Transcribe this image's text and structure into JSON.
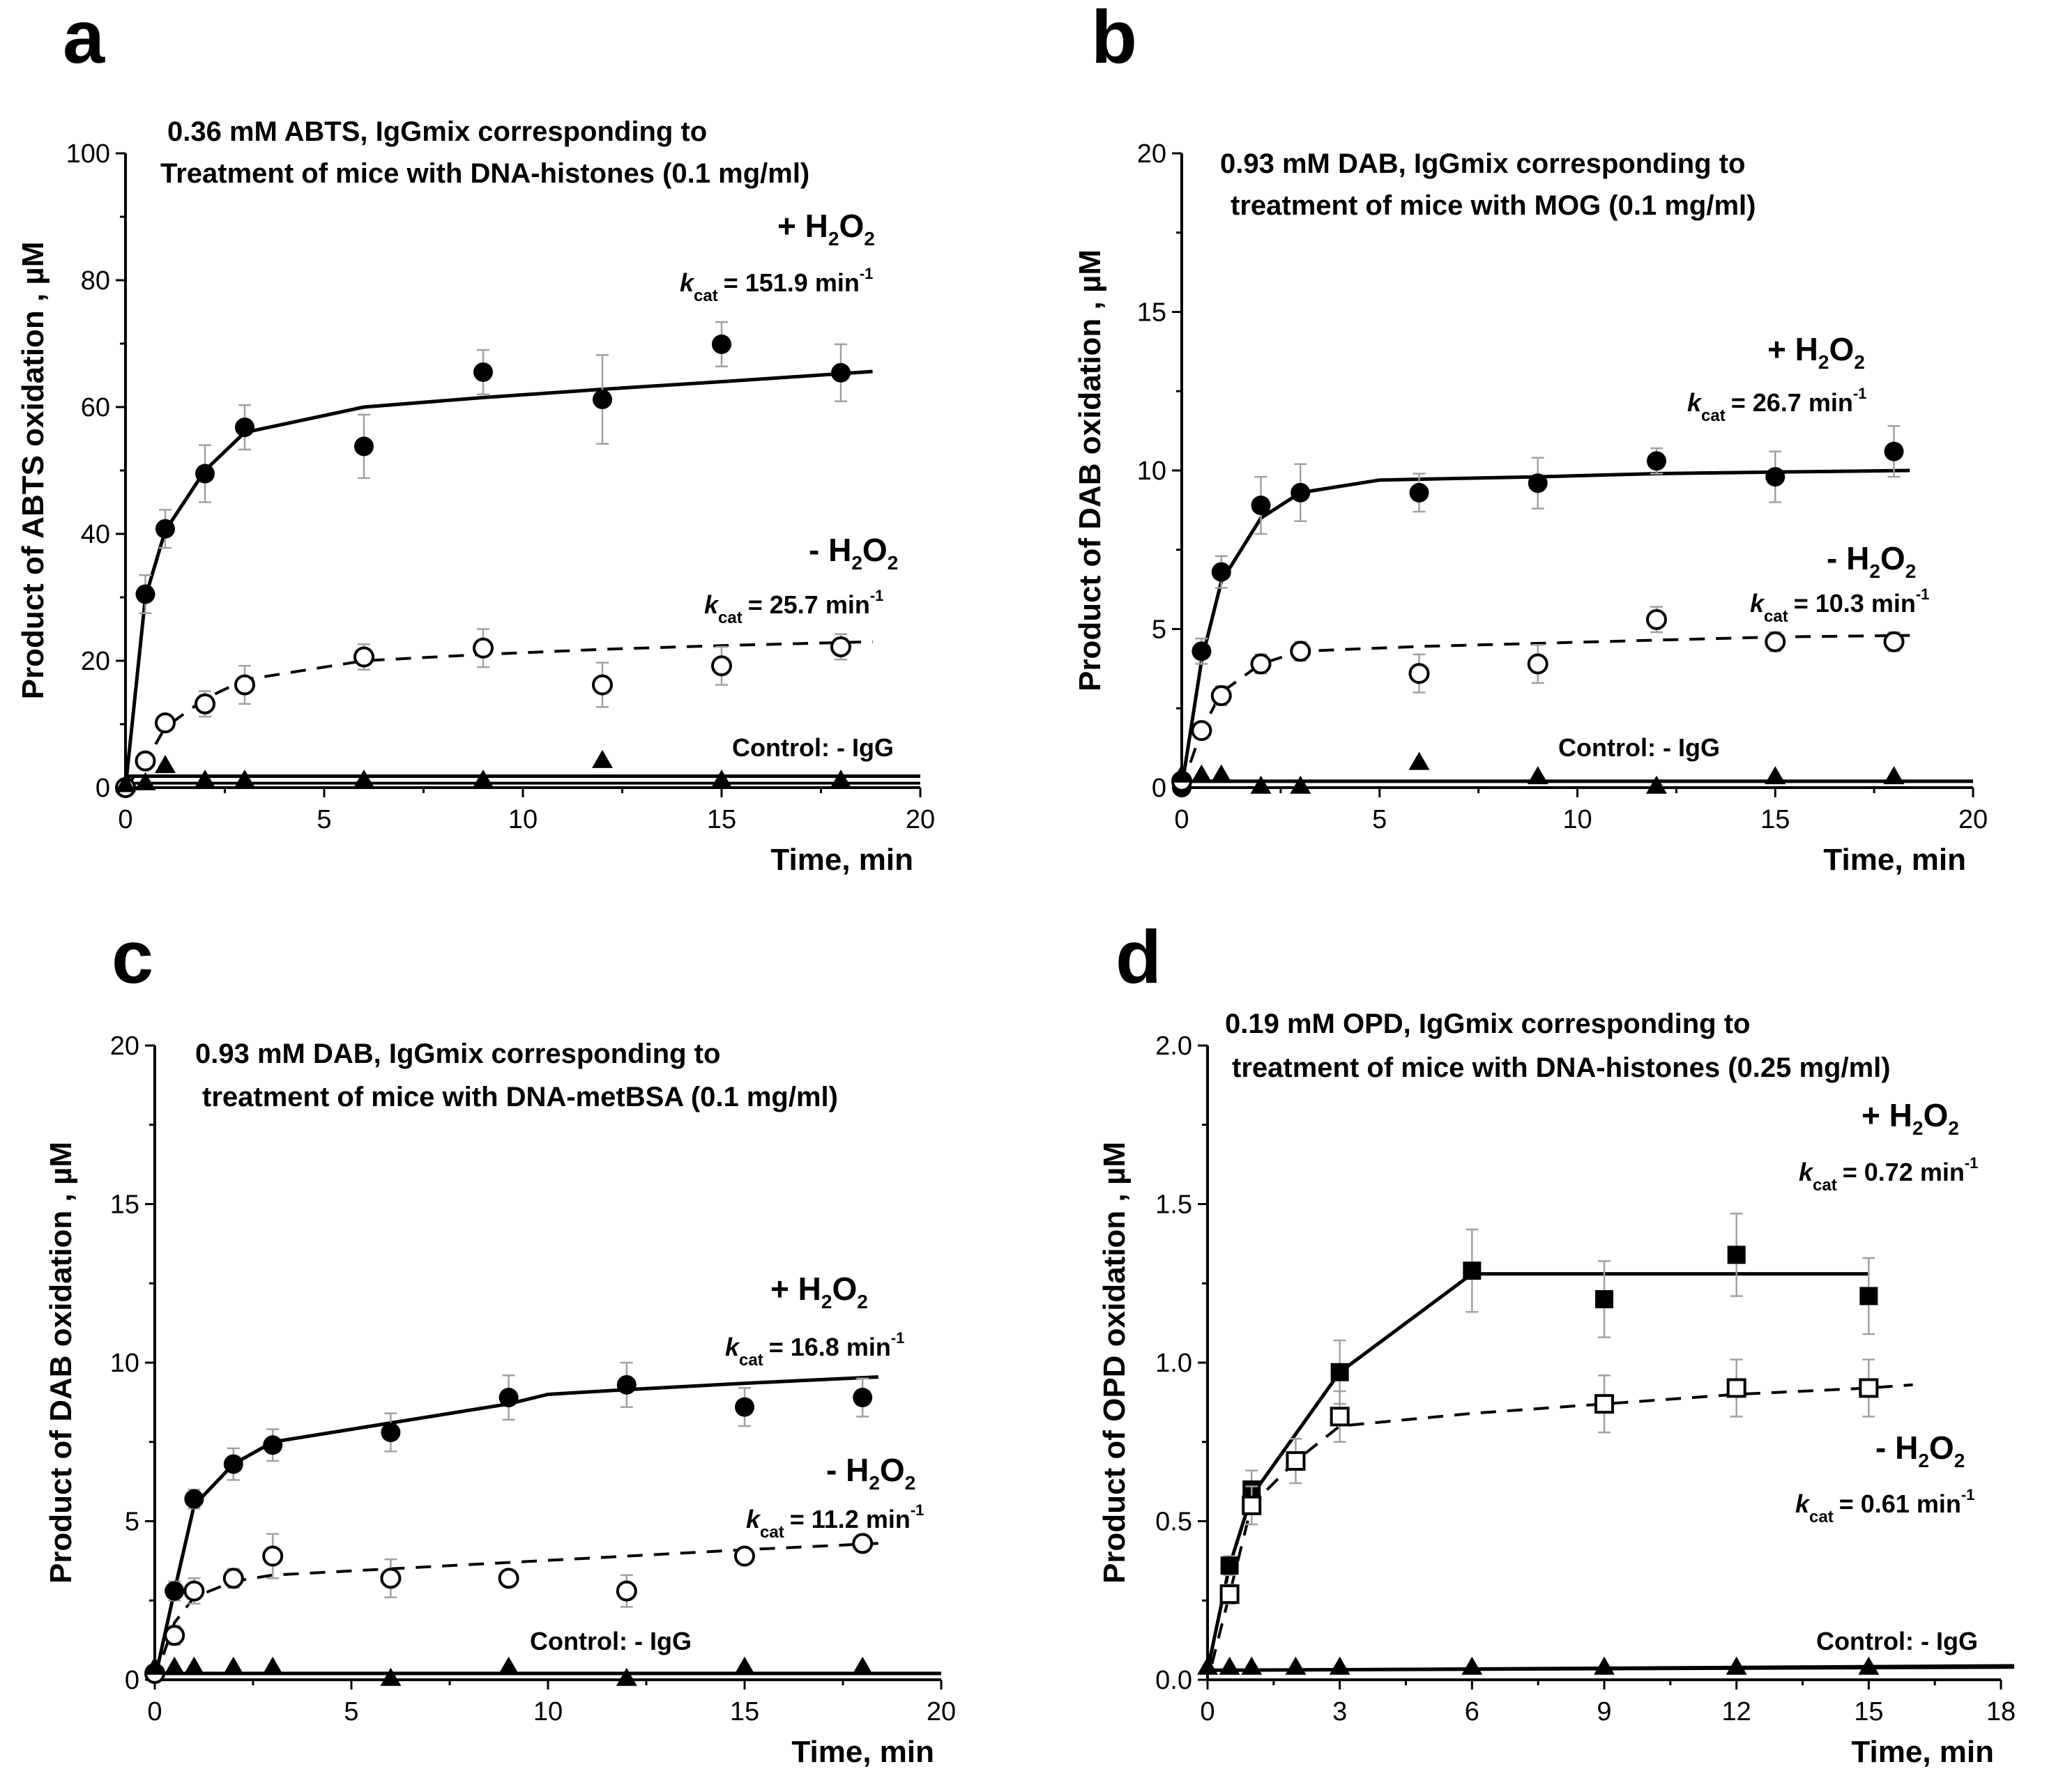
{
  "chart_data": [
    {
      "panel": "a",
      "type": "scatter",
      "title_lines": [
        "0.36 mM ABTS, IgGmix corresponding to",
        "Treatment of mice with DNA-histones  (0.1 mg/ml)"
      ],
      "xlabel": "Time, min",
      "ylabel": "Product of ABTS oxidation , µM",
      "xlim": [
        0,
        20
      ],
      "ylim": [
        0,
        100
      ],
      "xticks": [
        0,
        5,
        10,
        15,
        20
      ],
      "yticks": [
        0,
        20,
        40,
        60,
        80,
        100
      ],
      "series": [
        {
          "name": "+ H2O2",
          "marker": "filled-circle",
          "fit": "solid",
          "x": [
            0,
            0.5,
            1,
            2,
            3,
            6,
            9,
            12,
            15,
            18
          ],
          "y": [
            0,
            30.5,
            40.8,
            49.5,
            56.8,
            53.8,
            65.5,
            61.2,
            69.9,
            65.4
          ],
          "err": [
            0,
            3,
            3,
            4.5,
            3.5,
            5,
            3.5,
            7,
            3.5,
            4.5
          ],
          "fit_x": [
            0,
            0.5,
            1,
            2,
            3,
            6,
            9,
            12,
            15,
            18.8
          ],
          "fit_y": [
            0,
            30,
            40.5,
            50,
            56,
            60,
            61.5,
            62.8,
            64,
            65.6
          ]
        },
        {
          "name": "- H2O2",
          "marker": "open-circle",
          "fit": "dashed",
          "x": [
            0,
            0.5,
            1,
            2,
            3,
            6,
            9,
            12,
            15,
            18
          ],
          "y": [
            0,
            4.2,
            10.2,
            13.2,
            16.2,
            20.6,
            22,
            16.2,
            19.2,
            22.2
          ],
          "err": [
            0,
            1,
            1,
            2,
            3,
            2,
            3,
            3.5,
            3,
            2
          ],
          "fit_x": [
            0,
            0.5,
            1,
            2,
            3,
            6,
            9,
            12,
            15,
            18.8
          ],
          "fit_y": [
            0,
            4,
            9.5,
            14,
            17,
            20,
            21,
            21.8,
            22.4,
            23
          ]
        },
        {
          "name": "Control: - IgG",
          "marker": "filled-triangle",
          "fit": "solid",
          "x": [
            0,
            0.5,
            1,
            2,
            3,
            6,
            9,
            12,
            15,
            18
          ],
          "y": [
            0.5,
            0.8,
            3.5,
            1.2,
            1.2,
            1.2,
            1.2,
            4.3,
            1.2,
            1.2
          ],
          "err": [
            0,
            0,
            0,
            0,
            0,
            0,
            0,
            0,
            0,
            0
          ],
          "fit_x": [
            0,
            20
          ],
          "fit_y": [
            1.8,
            1.8
          ],
          "fit2_x": [
            0,
            20
          ],
          "fit2_y": [
            0.7,
            0.7
          ]
        }
      ],
      "annotations": {
        "plus_label": "+ H",
        "plus_sub": "2",
        "plus_o": "O",
        "plus_sub2": "2",
        "plus_kcat_value": "= 151.9 min",
        "minus_label": "- H",
        "minus_sub": "2",
        "minus_o": "O",
        "minus_sub2": "2",
        "minus_kcat_value": "= 25.7 min",
        "control": "Control: - IgG",
        "k": "k",
        "cat": "cat",
        "inv": "-1"
      }
    },
    {
      "panel": "b",
      "type": "scatter",
      "title_lines": [
        "0.93 mM DAB, IgGmix corresponding to",
        "treatment of mice with MOG  (0.1 mg/ml)"
      ],
      "xlabel": "Time, min",
      "ylabel": "Product of DAB oxidation , µM",
      "xlim": [
        0,
        20
      ],
      "ylim": [
        0,
        20
      ],
      "xticks": [
        0,
        5,
        10,
        15,
        20
      ],
      "yticks": [
        0,
        5,
        10,
        15,
        20
      ],
      "series": [
        {
          "name": "+ H2O2",
          "marker": "filled-circle",
          "fit": "solid",
          "x": [
            0,
            0.5,
            1,
            2,
            3,
            6,
            9,
            12,
            15,
            18
          ],
          "y": [
            0,
            4.3,
            6.8,
            8.9,
            9.3,
            9.3,
            9.6,
            10.3,
            9.8,
            10.6
          ],
          "err": [
            0,
            0.4,
            0.5,
            0.9,
            0.9,
            0.6,
            0.8,
            0.4,
            0.8,
            0.8
          ],
          "fit_x": [
            0,
            0.5,
            1,
            2,
            3,
            5,
            9,
            12,
            15,
            18.4
          ],
          "fit_y": [
            0,
            4,
            6.5,
            8.5,
            9.3,
            9.7,
            9.8,
            9.9,
            9.95,
            10
          ]
        },
        {
          "name": "- H2O2",
          "marker": "open-circle",
          "fit": "dashed",
          "x": [
            0,
            0.5,
            1,
            2,
            3,
            6,
            9,
            12,
            15,
            18
          ],
          "y": [
            0.2,
            1.8,
            2.9,
            3.9,
            4.3,
            3.6,
            3.9,
            5.3,
            4.6,
            4.6
          ],
          "err": [
            0,
            0.2,
            0.3,
            0.3,
            0.3,
            0.6,
            0.6,
            0.4,
            0.3,
            0.3
          ],
          "fit_x": [
            0,
            0.5,
            1,
            2,
            3,
            6,
            9,
            12,
            15,
            18.4
          ],
          "fit_y": [
            0,
            1.8,
            3,
            3.9,
            4.3,
            4.45,
            4.55,
            4.65,
            4.75,
            4.8
          ]
        },
        {
          "name": "Control: - IgG",
          "marker": "filled-triangle",
          "fit": "solid",
          "x": [
            0,
            0.5,
            1,
            2,
            3,
            6,
            9,
            12,
            15,
            18
          ],
          "y": [
            0.4,
            0.4,
            0.4,
            0.05,
            0.05,
            0.8,
            0.35,
            0.05,
            0.35,
            0.35
          ],
          "err": [
            0,
            0,
            0,
            0,
            0,
            0,
            0,
            0,
            0,
            0
          ],
          "fit_x": [
            0,
            20
          ],
          "fit_y": [
            0.2,
            0.2
          ],
          "fit2_x": [
            0,
            20
          ],
          "fit2_y": [
            0,
            0
          ]
        }
      ],
      "annotations": {
        "plus_label": "+ H",
        "plus_sub": "2",
        "plus_o": "O",
        "plus_sub2": "2",
        "plus_kcat_value": "= 26.7 min",
        "minus_label": "- H",
        "minus_sub": "2",
        "minus_o": "O",
        "minus_sub2": "2",
        "minus_kcat_value": "= 10.3 min",
        "control": "Control: - IgG",
        "k": "k",
        "cat": "cat",
        "inv": "-1"
      }
    },
    {
      "panel": "c",
      "type": "scatter",
      "title_lines": [
        "0.93 mM DAB, IgGmix corresponding to",
        " treatment of mice with DNA-metBSA (0.1 mg/ml)"
      ],
      "xlabel": "Time, min",
      "ylabel": "Product of DAB oxidation , µM",
      "xlim": [
        0,
        20
      ],
      "ylim": [
        0,
        20
      ],
      "xticks": [
        0,
        5,
        10,
        15,
        20
      ],
      "yticks": [
        0,
        5,
        10,
        15,
        20
      ],
      "series": [
        {
          "name": "+ H2O2",
          "marker": "filled-circle",
          "fit": "solid",
          "x": [
            0,
            0.5,
            1,
            2,
            3,
            6,
            9,
            12,
            15,
            18
          ],
          "y": [
            0.2,
            2.8,
            5.7,
            6.8,
            7.4,
            7.8,
            8.9,
            9.3,
            8.6,
            8.9
          ],
          "err": [
            0,
            0.3,
            0.3,
            0.5,
            0.5,
            0.6,
            0.7,
            0.7,
            0.6,
            0.6
          ],
          "fit_x": [
            0,
            0.5,
            1,
            2,
            3,
            6,
            9,
            10,
            12,
            15,
            18.4
          ],
          "fit_y": [
            0,
            2.8,
            5.5,
            6.8,
            7.5,
            8.1,
            8.7,
            9,
            9.15,
            9.35,
            9.55
          ]
        },
        {
          "name": "- H2O2",
          "marker": "open-circle",
          "fit": "dashed",
          "x": [
            0,
            0.5,
            1,
            2,
            3,
            6,
            9,
            12,
            15,
            18
          ],
          "y": [
            0.2,
            1.4,
            2.8,
            3.2,
            3.9,
            3.2,
            3.2,
            2.8,
            3.9,
            4.3
          ],
          "err": [
            0,
            0.3,
            0.4,
            0.3,
            0.7,
            0.6,
            0.2,
            0.5,
            0.2,
            0.2
          ],
          "fit_x": [
            0,
            0.5,
            1,
            2,
            3,
            6,
            9,
            12,
            15,
            18.4
          ],
          "fit_y": [
            0,
            1.8,
            2.6,
            3.1,
            3.3,
            3.5,
            3.7,
            3.9,
            4.1,
            4.3
          ]
        },
        {
          "name": "Control: - IgG",
          "marker": "filled-triangle",
          "fit": "solid",
          "x": [
            0,
            0.5,
            1,
            2,
            3,
            6,
            9,
            12,
            15,
            18
          ],
          "y": [
            0.4,
            0.4,
            0.4,
            0.4,
            0.4,
            0.05,
            0.4,
            0.05,
            0.4,
            0.4
          ],
          "err": [
            0,
            0,
            0,
            0,
            0,
            0,
            0,
            0,
            0,
            0
          ],
          "fit_x": [
            0,
            20
          ],
          "fit_y": [
            0.2,
            0.2
          ],
          "fit2_x": [
            0,
            20
          ],
          "fit2_y": [
            0,
            0
          ]
        }
      ],
      "annotations": {
        "plus_label": "+ H",
        "plus_sub": "2",
        "plus_o": "O",
        "plus_sub2": "2",
        "plus_kcat_value": "= 16.8 min",
        "minus_label": "- H",
        "minus_sub": "2",
        "minus_o": "O",
        "minus_sub2": "2",
        "minus_kcat_value": "= 11.2 min",
        "control": "Control: - IgG",
        "k": "k",
        "cat": "cat",
        "inv": "-1"
      }
    },
    {
      "panel": "d",
      "type": "scatter",
      "title_lines": [
        "0.19 mM OPD, IgGmix corresponding to",
        " treatment of mice with DNA-histones (0.25 mg/ml)"
      ],
      "xlabel": "Time, min",
      "ylabel": "Product of OPD oxidation , µM",
      "xlim": [
        0,
        18
      ],
      "ylim": [
        0,
        2.0
      ],
      "xticks": [
        0,
        3,
        6,
        9,
        12,
        15,
        18
      ],
      "yticks": [
        0.0,
        0.5,
        1.0,
        1.5,
        2.0
      ],
      "ytick_labels": [
        "0.0",
        "0.5",
        "1.0",
        "1.5",
        "2.0"
      ],
      "series": [
        {
          "name": "+ H2O2",
          "marker": "filled-square",
          "fit": "solid",
          "x": [
            0.5,
            1,
            3,
            6,
            9,
            12,
            15
          ],
          "y": [
            0.36,
            0.6,
            0.97,
            1.29,
            1.2,
            1.34,
            1.21
          ],
          "err": [
            0.03,
            0.06,
            0.1,
            0.13,
            0.12,
            0.13,
            0.12
          ],
          "fit_x": [
            0,
            0.5,
            1,
            3,
            6,
            9,
            12,
            15
          ],
          "fit_y": [
            0.03,
            0.36,
            0.58,
            0.97,
            1.28,
            1.28,
            1.28,
            1.28
          ]
        },
        {
          "name": "- H2O2",
          "marker": "open-square",
          "fit": "dashed",
          "x": [
            0.5,
            1,
            2,
            3,
            9,
            12,
            15
          ],
          "y": [
            0.27,
            0.55,
            0.69,
            0.83,
            0.87,
            0.92,
            0.92
          ],
          "err": [
            0.03,
            0.06,
            0.07,
            0.08,
            0.09,
            0.09,
            0.09
          ],
          "fit_x": [
            0.1,
            0.5,
            1,
            2,
            3,
            6,
            9,
            12,
            15,
            16
          ],
          "fit_y": [
            0.05,
            0.27,
            0.55,
            0.69,
            0.8,
            0.84,
            0.87,
            0.9,
            0.92,
            0.93
          ]
        },
        {
          "name": "Control: - IgG",
          "marker": "filled-triangle",
          "fit": "solid",
          "x": [
            0,
            0.5,
            1,
            2,
            3,
            6,
            9,
            12,
            15
          ],
          "y": [
            0.04,
            0.04,
            0.04,
            0.04,
            0.04,
            0.04,
            0.04,
            0.04,
            0.04
          ],
          "err": [
            0,
            0,
            0,
            0,
            0,
            0,
            0,
            0,
            0
          ],
          "fit_x": [
            0,
            18.3
          ],
          "fit_y": [
            0.03,
            0.04
          ],
          "fit2_x": [
            0,
            18.3
          ],
          "fit2_y": [
            0.03,
            0.045
          ]
        }
      ],
      "annotations": {
        "plus_label": "+ H",
        "plus_sub": "2",
        "plus_o": "O",
        "plus_sub2": "2",
        "plus_kcat_value": "= 0.72 min",
        "minus_label": "- H",
        "minus_sub": "2",
        "minus_o": "O",
        "minus_sub2": "2",
        "minus_kcat_value": "= 0.61 min",
        "control": "Control: - IgG",
        "k": "k",
        "cat": "cat",
        "inv": "-1"
      }
    }
  ]
}
